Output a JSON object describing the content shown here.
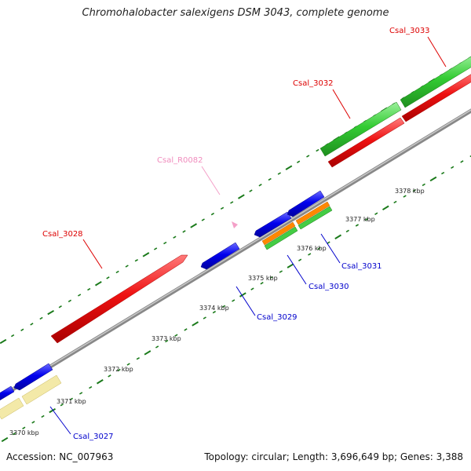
{
  "title": "Chromohalobacter salexigens DSM 3043, complete genome",
  "footer": {
    "accession": "Accession: NC_007963",
    "summary": "Topology: circular; Length: 3,696,649 bp; Genes: 3,388"
  },
  "scale_labels": [
    {
      "label": "3370 kbp"
    },
    {
      "label": "3371 kbp"
    },
    {
      "label": "3372 kbp"
    },
    {
      "label": "3373 kbp"
    },
    {
      "label": "3374 kbp"
    },
    {
      "label": "3375 kbp"
    },
    {
      "label": "3376 kbp"
    },
    {
      "label": "3377 kbp"
    },
    {
      "label": "3378 kbp"
    }
  ],
  "genes": [
    {
      "label": "Csal_3027",
      "strand": "reverse",
      "color": "#0000ee",
      "label_color": "#0000cc"
    },
    {
      "label": "Csal_3028",
      "strand": "forward",
      "color": "#ee1111",
      "label_color": "#dd0000"
    },
    {
      "label": "Csal_R0082",
      "strand": "forward",
      "color": "#f4a0c8",
      "label_color": "#f08cbd"
    },
    {
      "label": "Csal_3029",
      "strand": "reverse",
      "color": "#0000ee",
      "label_color": "#0000cc"
    },
    {
      "label": "Csal_3030",
      "strand": "reverse",
      "color": "#0000ee",
      "label_color": "#0000cc"
    },
    {
      "label": "Csal_3031",
      "strand": "reverse",
      "color": "#0000ee",
      "label_color": "#0000cc"
    },
    {
      "label": "Csal_3032",
      "strand": "forward",
      "color": "#ee1111",
      "label_color": "#dd0000"
    },
    {
      "label": "Csal_3033",
      "strand": "forward",
      "color": "#33cc33",
      "label_color": "#dd0000"
    }
  ],
  "colors": {
    "backbone": "#888888",
    "tick": "#1a7a1a",
    "feature_cds_orange": "#ff8800",
    "feature_gene_green": "#44cc44",
    "feature_misc_yellow": "#f3e9a8"
  }
}
